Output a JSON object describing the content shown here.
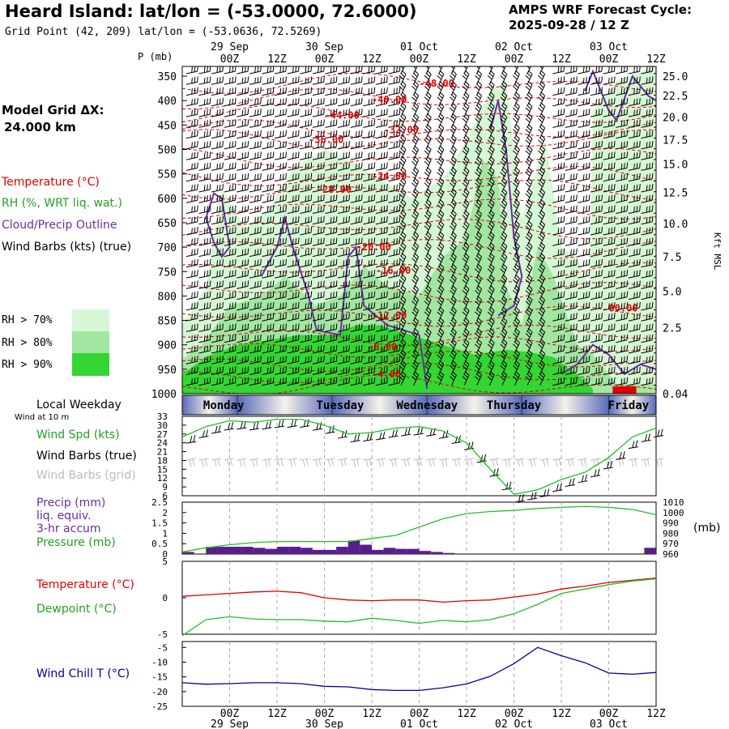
{
  "header": {
    "title": "Heard Island:  lat/lon = (-53.0000, 72.6000)",
    "subtitle": "Grid Point (42, 209) lat/lon = (-53.0636, 72.5269)",
    "cycle_title": "AMPS WRF Forecast Cycle:",
    "cycle_value": "2025-09-28 / 12  Z"
  },
  "sidebar": {
    "model_grid_label": "Model Grid ΔX:",
    "model_grid_value": "24.000 km",
    "legend_temperature": "Temperature (°C)",
    "legend_rh": "RH (%, WRT liq. wat.)",
    "legend_cloud": "Cloud/Precip Outline",
    "legend_wind": "Wind Barbs (kts) (true)",
    "rh_levels": [
      "RH > 70%",
      "RH > 80%",
      "RH > 90%"
    ],
    "local_weekday": "Local Weekday",
    "wind_at_10m": "Wind at 10 m",
    "wind_spd": "Wind Spd (kts)",
    "wind_barbs_true": "Wind Barbs (true)",
    "wind_barbs_grid": "Wind Barbs (grid)",
    "precip": [
      "Precip (mm)",
      "liq. equiv.",
      "3-hr accum"
    ],
    "pressure": "Pressure (mb)",
    "pressure_unit": "(mb)",
    "temperature": "Temperature (°C)",
    "dewpoint": "Dewpoint (°C)",
    "wind_chill": "Wind Chill T (°C)"
  },
  "colors": {
    "rh70": "#d6f7d6",
    "rh80": "#a2e6a2",
    "rh90": "#33d633",
    "temperature": "#e00000",
    "cloud": "#6a2ca0",
    "wind_speed": "#22c022",
    "precip": "#5a1e8a",
    "wind_chill": "#0000a0",
    "weekday_band": "#5a6ab8"
  },
  "chart_data": [
    {
      "type": "heatmap",
      "name": "time-height cross section",
      "x_ticks": [
        "00Z",
        "12Z",
        "00Z",
        "12Z",
        "00Z",
        "12Z",
        "00Z",
        "12Z",
        "00Z",
        "12Z"
      ],
      "x_ticks_hours": [
        12,
        24,
        36,
        48,
        60,
        72,
        84,
        96,
        108,
        120
      ],
      "x_date_labels": [
        "29 Sep",
        "30 Sep",
        "01 Oct",
        "02 Oct",
        "03 Oct"
      ],
      "x_date_hours": [
        12,
        36,
        60,
        84,
        108
      ],
      "xlim_hours": [
        0,
        120
      ],
      "ylabel": "P (mb)",
      "y_ticks": [
        350,
        400,
        450,
        500,
        550,
        600,
        650,
        700,
        750,
        800,
        850,
        900,
        950,
        1000
      ],
      "ylim": [
        330,
        1000
      ],
      "right_label": "Kft MSL",
      "right_ticks": [
        "25.0",
        "22.5",
        "20.0",
        "17.5",
        "15.0",
        "12.5",
        "10.0",
        "7.5",
        "5.0",
        "2.5",
        "0.04"
      ],
      "right_ticks_pressure": [
        350,
        390,
        434,
        480,
        530,
        588,
        652,
        720,
        790,
        865,
        1000
      ],
      "temperature_labels": [
        {
          "text": "-48.00",
          "hour": 60,
          "p": 365
        },
        {
          "text": "-40.00",
          "hour": 48,
          "p": 398
        },
        {
          "text": "-44.00",
          "hour": 36,
          "p": 430
        },
        {
          "text": "-32.00",
          "hour": 51,
          "p": 460
        },
        {
          "text": "-36.00",
          "hour": 32,
          "p": 480
        },
        {
          "text": "-24.00",
          "hour": 48,
          "p": 555
        },
        {
          "text": "-28.00",
          "hour": 34,
          "p": 582
        },
        {
          "text": "-20.00",
          "hour": 44,
          "p": 700
        },
        {
          "text": "-16.00",
          "hour": 49,
          "p": 748
        },
        {
          "text": "-12.00",
          "hour": 48,
          "p": 840
        },
        {
          "text": "-8.00",
          "hour": 47,
          "p": 905
        },
        {
          "text": "-4.00",
          "hour": 48,
          "p": 960
        },
        {
          "text": "00.00",
          "hour": 108,
          "p": 825
        }
      ]
    },
    {
      "type": "line",
      "name": "wind speed",
      "ylabel": "Wind Spd (kts)",
      "y_ticks": [
        6,
        9,
        12,
        15,
        18,
        21,
        24,
        27,
        30,
        33
      ],
      "ylim": [
        6,
        33
      ],
      "x_hours": [
        0,
        6,
        12,
        18,
        24,
        30,
        36,
        42,
        48,
        54,
        60,
        66,
        72,
        78,
        84,
        90,
        96,
        102,
        108,
        114,
        120
      ],
      "values": [
        26,
        29.5,
        31.5,
        31,
        32,
        32,
        30,
        27,
        27.5,
        29,
        29.5,
        28,
        24,
        15,
        6.5,
        8,
        11.5,
        14,
        19,
        26,
        29
      ]
    },
    {
      "type": "bar",
      "name": "precipitation and pressure",
      "ylabel": "Precip (mm)",
      "y_ticks": [
        0,
        0.5,
        1.0,
        1.5,
        2.0,
        2.5
      ],
      "ylim": [
        0,
        2.5
      ],
      "x_hours": [
        0,
        3,
        6,
        9,
        12,
        15,
        18,
        21,
        24,
        27,
        30,
        33,
        36,
        39,
        42,
        45,
        48,
        51,
        54,
        57,
        60,
        63,
        66,
        69,
        72,
        75,
        78,
        81,
        84,
        87,
        90,
        93,
        96,
        99,
        102,
        105,
        108,
        111,
        114,
        117
      ],
      "values": [
        0.1,
        0,
        0.35,
        0.35,
        0.35,
        0.35,
        0.3,
        0.25,
        0.35,
        0.35,
        0.3,
        0.2,
        0.2,
        0.35,
        0.65,
        0.45,
        0.2,
        0.3,
        0.25,
        0.25,
        0.15,
        0.1,
        0.05,
        0,
        0,
        0,
        0,
        0,
        0,
        0,
        0,
        0,
        0,
        0,
        0,
        0,
        0,
        0,
        0,
        0.3
      ],
      "pressure_label": "Pressure (mb)",
      "pressure_ticks": [
        960,
        970,
        980,
        990,
        1000,
        1010
      ],
      "pressure_lim": [
        960,
        1010
      ],
      "pressure_hours": [
        0,
        6,
        12,
        18,
        24,
        36,
        42,
        48,
        54,
        60,
        66,
        72,
        78,
        84,
        90,
        96,
        102,
        108,
        114,
        120
      ],
      "pressure_values": [
        962,
        966,
        969,
        971,
        972,
        972,
        972,
        975,
        978,
        986,
        994,
        999,
        1001,
        1002,
        1004,
        1005,
        1006,
        1005,
        1003,
        998
      ]
    },
    {
      "type": "line",
      "name": "temperature and dewpoint",
      "y_ticks": [
        -5,
        0,
        5
      ],
      "ylim": [
        -5,
        5
      ],
      "x_hours": [
        0,
        6,
        12,
        18,
        24,
        30,
        36,
        42,
        48,
        54,
        60,
        66,
        72,
        78,
        84,
        90,
        96,
        102,
        108,
        114,
        120
      ],
      "series": [
        {
          "name": "Temperature (°C)",
          "values": [
            0.2,
            0.4,
            0.6,
            0.8,
            0.9,
            0.7,
            0.0,
            -0.3,
            -0.4,
            -0.3,
            -0.3,
            -0.6,
            -0.4,
            -0.3,
            0.1,
            0.5,
            1.2,
            1.6,
            2.1,
            2.4,
            2.7
          ]
        },
        {
          "name": "Dewpoint (°C)",
          "values": [
            -5.2,
            -3.0,
            -2.6,
            -2.9,
            -3.0,
            -3.0,
            -3.2,
            -3.3,
            -2.8,
            -3.1,
            -3.5,
            -3.1,
            -3.3,
            -3.0,
            -2.2,
            -0.9,
            0.6,
            1.2,
            1.8,
            2.3,
            2.6
          ]
        }
      ]
    },
    {
      "type": "line",
      "name": "wind chill",
      "ylabel": "Wind Chill T (°C)",
      "y_ticks": [
        -25,
        -20,
        -15,
        -10,
        -5
      ],
      "ylim": [
        -25,
        -3
      ],
      "x_hours": [
        0,
        6,
        12,
        18,
        24,
        30,
        36,
        42,
        48,
        54,
        60,
        66,
        72,
        78,
        84,
        90,
        96,
        102,
        108,
        114,
        120
      ],
      "values": [
        -17,
        -17.5,
        -17.3,
        -17.0,
        -17.0,
        -17.3,
        -18.2,
        -18.4,
        -19.3,
        -19.6,
        -19.6,
        -18.7,
        -17.4,
        -14.8,
        -10.5,
        -5.0,
        -7.8,
        -10.2,
        -13.7,
        -14.1,
        -13.5
      ]
    },
    {
      "type": "table",
      "name": "local weekday band",
      "labels": [
        "Monday",
        "Tuesday",
        "Wednesday",
        "Thursday",
        "Friday"
      ]
    }
  ]
}
